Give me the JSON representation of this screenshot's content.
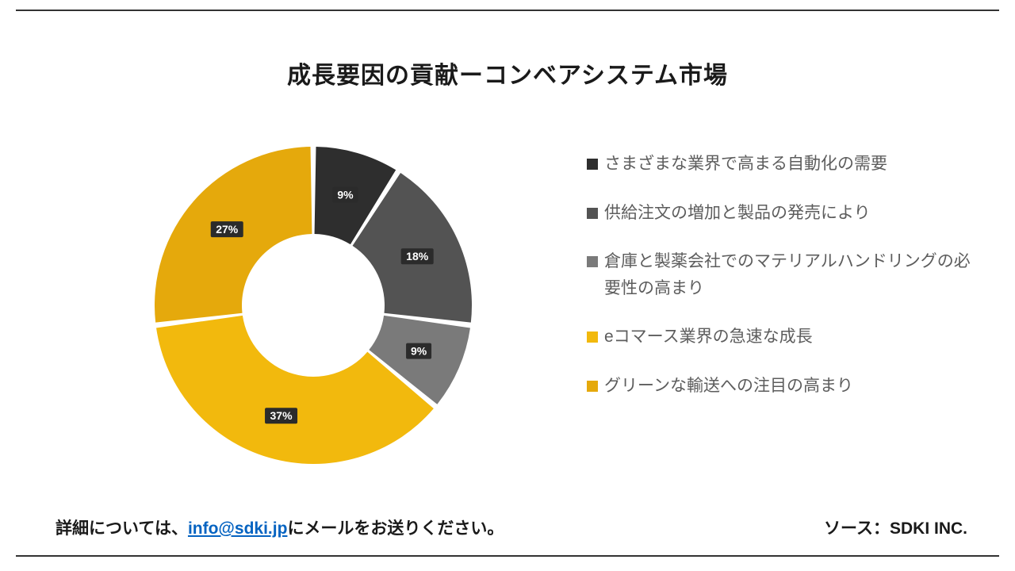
{
  "title": "成長要因の貢献ーコンベアシステム市場",
  "chart": {
    "type": "donut",
    "innerRadiusRatio": 0.45,
    "background": "#ffffff",
    "startAngleDeg": -90,
    "gapDeg": 2,
    "labelBox": {
      "fill": "#2b2b2b",
      "textColor": "#ffffff",
      "fontSize": 14
    },
    "slices": [
      {
        "label": "9%",
        "value": 9,
        "color": "#2e2e2e",
        "legend": "さまざまな業界で高まる自動化の需要"
      },
      {
        "label": "18%",
        "value": 18,
        "color": "#535353",
        "legend": "供給注文の増加と製品の発売により"
      },
      {
        "label": "9%",
        "value": 9,
        "color": "#7a7a7a",
        "legend": "倉庫と製薬会社でのマテリアルハンドリングの必要性の高まり"
      },
      {
        "label": "37%",
        "value": 37,
        "color": "#f2b90d",
        "legend": "eコマース業界の急速な成長"
      },
      {
        "label": "27%",
        "value": 27,
        "color": "#e5a90c",
        "legend": "グリーンな輸送への注目の高まり"
      }
    ]
  },
  "legendTextColor": "#5d5d5d",
  "legendFontSize": 21,
  "footer": {
    "contactPrefix": "詳細については、",
    "contactEmail": "info@sdki.jp",
    "contactSuffix": "にメールをお送りください。",
    "sourceLabel": "ソース：",
    "sourceValue": "SDKI INC."
  },
  "ruleColor": "#333333"
}
